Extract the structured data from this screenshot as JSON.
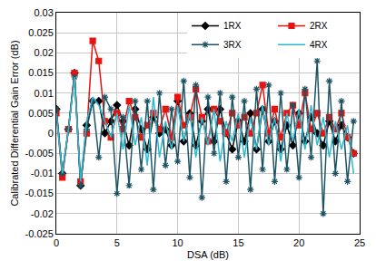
{
  "chart_data": {
    "type": "line",
    "x_label": "DSA (dB)",
    "y_label": "Calibrated Differential Gain Error (dB)",
    "x": [
      0,
      0.5,
      1,
      1.5,
      2,
      2.5,
      3,
      3.5,
      4,
      4.5,
      5,
      5.5,
      6,
      6.5,
      7,
      7.5,
      8,
      8.5,
      9,
      9.5,
      10,
      10.5,
      11,
      11.5,
      12,
      12.5,
      13,
      13.5,
      14,
      14.5,
      15,
      15.5,
      16,
      16.5,
      17,
      17.5,
      18,
      18.5,
      19,
      19.5,
      20,
      20.5,
      21,
      21.5,
      22,
      22.5,
      23,
      23.5,
      24,
      24.5
    ],
    "series": [
      {
        "name": "1RX",
        "color": "#000000",
        "marker": "diamond",
        "values": [
          0.006,
          -0.01,
          0.001,
          0.015,
          -0.013,
          0.002,
          0.008,
          0.008,
          0.0,
          0.003,
          0.007,
          0.003,
          -0.003,
          0.006,
          0.001,
          -0.004,
          0.004,
          0.0,
          0.001,
          -0.003,
          0.008,
          -0.002,
          0.005,
          -0.003,
          0.003,
          0.006,
          -0.002,
          0.006,
          0.0,
          -0.004,
          0.003,
          -0.002,
          0.005,
          -0.004,
          0.006,
          -0.002,
          0.003,
          -0.004,
          0.002,
          -0.003,
          0.005,
          -0.002,
          0.004,
          0.0,
          -0.003,
          0.003,
          -0.002,
          0.002,
          -0.001,
          -0.005
        ]
      },
      {
        "name": "2RX",
        "color": "#e8120f",
        "marker": "square",
        "values": [
          0.005,
          -0.011,
          0.001,
          0.015,
          -0.012,
          0.0,
          0.023,
          0.018,
          0.003,
          -0.001,
          0.005,
          0.001,
          0.008,
          0.004,
          -0.001,
          0.002,
          0.005,
          0.001,
          0.006,
          -0.001,
          0.009,
          0.002,
          0.004,
          0.011,
          0.004,
          -0.002,
          0.006,
          0.003,
          0.0,
          0.005,
          0.002,
          0.004,
          0.0,
          0.005,
          0.012,
          0.0,
          0.006,
          -0.001,
          0.005,
          0.007,
          0.002,
          0.01,
          0.001,
          0.005,
          0.0,
          0.004,
          0.001,
          0.005,
          -0.001,
          -0.005
        ]
      },
      {
        "name": "3RX",
        "color": "#1d5464",
        "marker": "star",
        "values": [
          0.006,
          -0.01,
          0.001,
          0.014,
          -0.013,
          0.001,
          0.008,
          -0.006,
          0.009,
          0.006,
          -0.015,
          0.004,
          -0.013,
          0.008,
          -0.009,
          0.008,
          -0.014,
          0.01,
          -0.008,
          0.006,
          -0.007,
          0.013,
          -0.011,
          0.012,
          -0.016,
          0.009,
          -0.005,
          0.01,
          -0.012,
          0.009,
          -0.006,
          0.008,
          -0.014,
          0.011,
          -0.009,
          0.012,
          -0.012,
          0.01,
          -0.009,
          0.007,
          -0.011,
          0.011,
          -0.006,
          0.018,
          -0.02,
          0.013,
          -0.01,
          0.008,
          -0.012,
          0.003
        ]
      },
      {
        "name": "4RX",
        "color": "#2bbad0",
        "marker": "none",
        "values": [
          0.005,
          -0.01,
          0.001,
          0.014,
          -0.012,
          0.003,
          0.009,
          0.007,
          0.003,
          -0.001,
          0.005,
          -0.004,
          0.007,
          -0.003,
          0.004,
          -0.008,
          0.009,
          -0.006,
          0.003,
          -0.004,
          0.007,
          -0.002,
          0.005,
          -0.006,
          0.004,
          -0.003,
          0.006,
          -0.007,
          0.003,
          -0.002,
          0.005,
          -0.006,
          0.004,
          -0.004,
          0.007,
          -0.003,
          0.004,
          -0.007,
          0.005,
          -0.002,
          0.006,
          -0.004,
          0.007,
          -0.003,
          0.004,
          -0.006,
          0.003,
          -0.004,
          0.002,
          -0.01
        ]
      }
    ],
    "xlim": [
      0,
      25
    ],
    "xticks": [
      0,
      5,
      10,
      15,
      20,
      25
    ],
    "ylim": [
      -0.025,
      0.03
    ],
    "yticks": [
      -0.025,
      -0.02,
      -0.015,
      -0.01,
      -0.005,
      0,
      0.005,
      0.01,
      0.015,
      0.02,
      0.025,
      0.03
    ],
    "grid": true,
    "legend": "top right"
  }
}
